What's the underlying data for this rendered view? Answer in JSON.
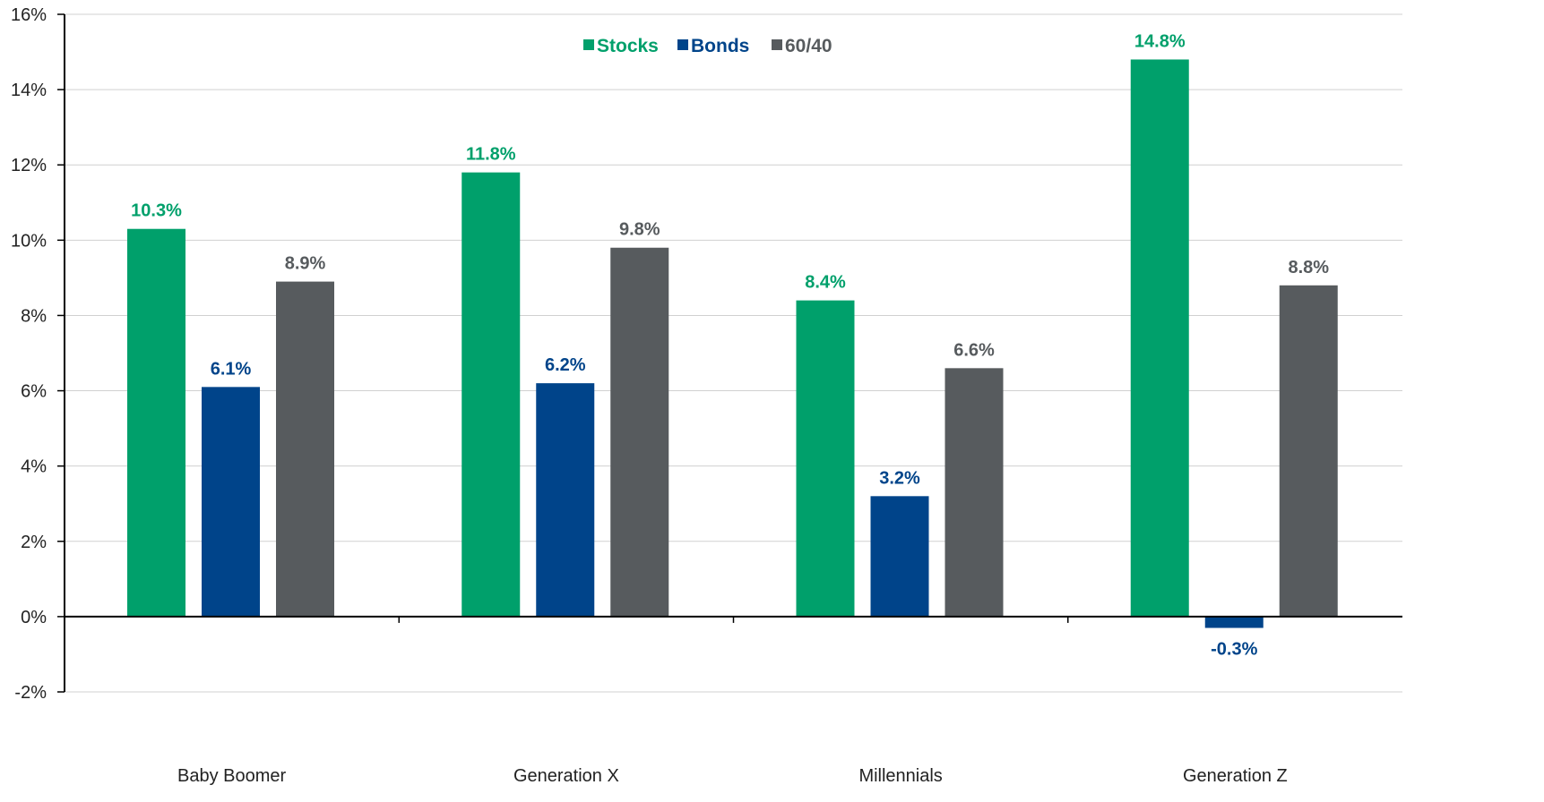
{
  "chart_data": {
    "type": "bar",
    "categories": [
      "Baby Boomer",
      "Generation X",
      "Millennials",
      "Generation Z"
    ],
    "series": [
      {
        "name": "Stocks",
        "color": "#00a06b",
        "values": [
          10.3,
          11.8,
          8.4,
          14.8
        ],
        "labels": [
          "10.3%",
          "11.8%",
          "8.4%",
          "14.8%"
        ]
      },
      {
        "name": "Bonds",
        "color": "#00448a",
        "values": [
          6.1,
          6.2,
          3.2,
          -0.3
        ],
        "labels": [
          "6.1%",
          "6.2%",
          "3.2%",
          "-0.3%"
        ]
      },
      {
        "name": "60/40",
        "color": "#575b5e",
        "values": [
          8.9,
          9.8,
          6.6,
          8.8
        ],
        "labels": [
          "8.9%",
          "9.8%",
          "6.6%",
          "8.8%"
        ]
      }
    ],
    "ylim": [
      -2,
      16
    ],
    "yticks": [
      -2,
      0,
      2,
      4,
      6,
      8,
      10,
      12,
      14,
      16
    ],
    "ytick_labels": [
      "-2%",
      "0%",
      "2%",
      "4%",
      "6%",
      "8%",
      "10%",
      "12%",
      "14%",
      "16%"
    ],
    "grid": true,
    "legend_position": "top-center",
    "title": "",
    "xlabel": "",
    "ylabel": ""
  }
}
